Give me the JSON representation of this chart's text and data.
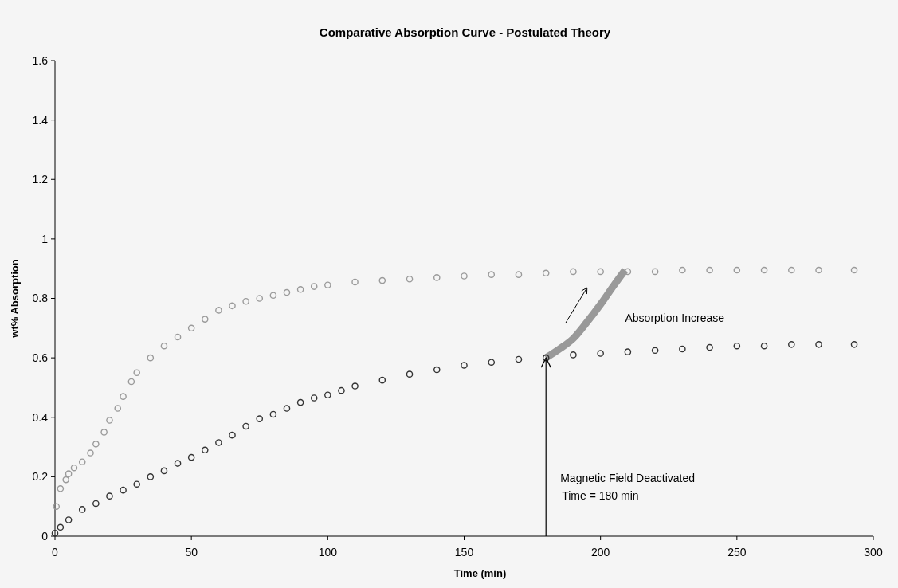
{
  "chart_data": {
    "type": "scatter",
    "title": "Comparative Absorption Curve - Postulated Theory",
    "xlabel": "Time (min)",
    "ylabel": "wt% Absorption",
    "xlim": [
      0,
      300
    ],
    "xticks": [
      0,
      50,
      100,
      150,
      200,
      250,
      300
    ],
    "ylim": [
      0,
      1.6
    ],
    "yticks": [
      0,
      0.2,
      0.4,
      0.6,
      0.8,
      1,
      1.2,
      1.4,
      1.6
    ],
    "grid": false,
    "marker": "circle",
    "series": [
      {
        "color": "#9a9a9a",
        "x": [
          0.5,
          2,
          4,
          5,
          7,
          10,
          13,
          15,
          18,
          20,
          23,
          25,
          28,
          30,
          35,
          40,
          45,
          50,
          55,
          60,
          65,
          70,
          75,
          80,
          85,
          90,
          95,
          100,
          110,
          120,
          130,
          140,
          150,
          160,
          170,
          180,
          190,
          200,
          210,
          220,
          230,
          240,
          250,
          260,
          270,
          280,
          293
        ],
        "values": [
          0.1,
          0.16,
          0.19,
          0.21,
          0.23,
          0.25,
          0.28,
          0.31,
          0.35,
          0.39,
          0.43,
          0.47,
          0.52,
          0.55,
          0.6,
          0.64,
          0.67,
          0.7,
          0.73,
          0.76,
          0.775,
          0.79,
          0.8,
          0.81,
          0.82,
          0.83,
          0.84,
          0.845,
          0.855,
          0.86,
          0.865,
          0.87,
          0.875,
          0.88,
          0.88,
          0.885,
          0.89,
          0.89,
          0.89,
          0.89,
          0.895,
          0.895,
          0.895,
          0.895,
          0.895,
          0.895,
          0.895
        ]
      },
      {
        "color": "#333333",
        "x": [
          0,
          2,
          5,
          10,
          15,
          20,
          25,
          30,
          35,
          40,
          45,
          50,
          55,
          60,
          65,
          70,
          75,
          80,
          85,
          90,
          95,
          100,
          105,
          110,
          120,
          130,
          140,
          150,
          160,
          170,
          180,
          190,
          200,
          210,
          220,
          230,
          240,
          250,
          260,
          270,
          280,
          293
        ],
        "values": [
          0.01,
          0.03,
          0.055,
          0.09,
          0.11,
          0.135,
          0.155,
          0.175,
          0.2,
          0.22,
          0.245,
          0.265,
          0.29,
          0.315,
          0.34,
          0.37,
          0.395,
          0.41,
          0.43,
          0.45,
          0.465,
          0.475,
          0.49,
          0.505,
          0.525,
          0.545,
          0.56,
          0.575,
          0.585,
          0.595,
          0.6,
          0.61,
          0.615,
          0.62,
          0.625,
          0.63,
          0.635,
          0.64,
          0.64,
          0.645,
          0.645,
          0.645
        ]
      },
      {
        "type": "line",
        "color": "#999999",
        "marker": "none",
        "x": [
          180,
          185,
          190,
          195,
          200,
          205,
          209
        ],
        "values": [
          0.6,
          0.63,
          0.665,
          0.72,
          0.78,
          0.845,
          0.895
        ]
      }
    ],
    "ref_lines": [
      {
        "axis": "x",
        "value": 180,
        "label": "Magnetic Field Deactivated\nTime = 180 min",
        "color": "#000000"
      }
    ],
    "annotations": [
      "Absorption Increase"
    ]
  }
}
